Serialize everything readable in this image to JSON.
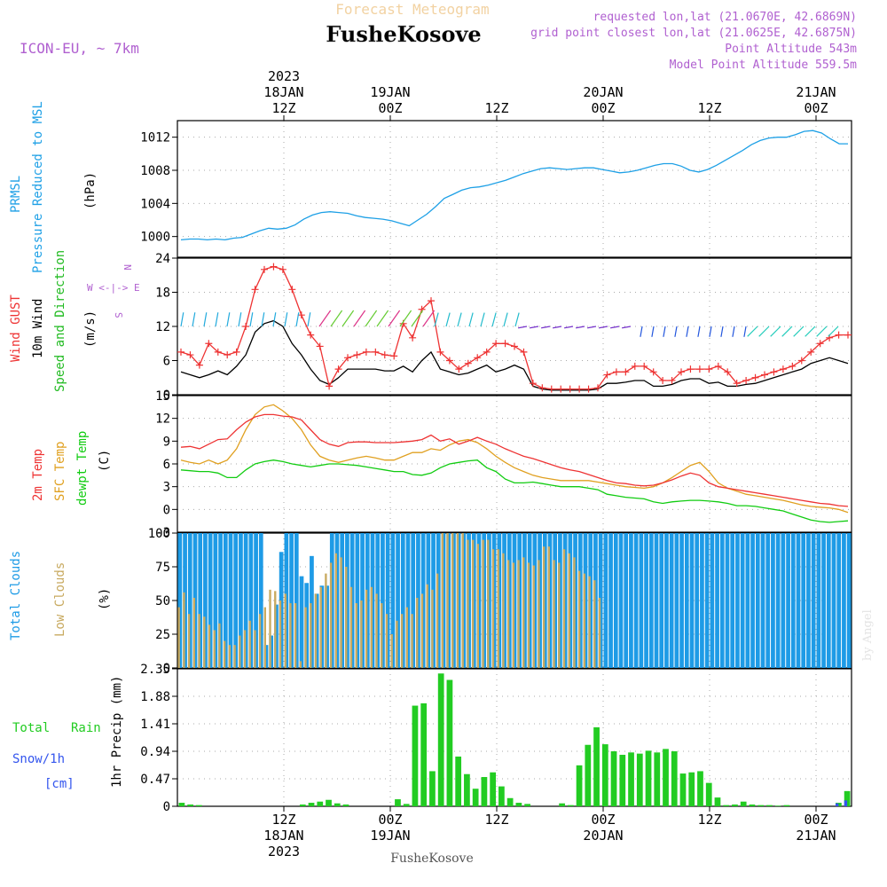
{
  "header": {
    "title": "Forecast Meteogram",
    "location": "FusheKosove",
    "model": "ICON-EU, ~ 7km",
    "requested": "requested lon,lat (21.0670E, 42.6869N)",
    "grid_point": "grid point closest lon,lat (21.0625E, 42.6875N)",
    "point_altitude": "Point Altitude 543m",
    "model_altitude": "Model Point Altitude 559.5m",
    "footer_location": "FusheKosove",
    "watermark": "by Angel"
  },
  "time_axis": {
    "top": [
      {
        "hour": "12Z",
        "day": "18JAN",
        "year": "2023"
      },
      {
        "hour": "00Z",
        "day": "19JAN",
        "year": ""
      },
      {
        "hour": "12Z",
        "day": "",
        "year": ""
      },
      {
        "hour": "00Z",
        "day": "20JAN",
        "year": ""
      },
      {
        "hour": "12Z",
        "day": "",
        "year": ""
      },
      {
        "hour": "00Z",
        "day": "21JAN",
        "year": ""
      }
    ],
    "bottom": [
      {
        "hour": "12Z",
        "day": "18JAN",
        "year": "2023"
      },
      {
        "hour": "00Z",
        "day": "19JAN",
        "year": ""
      },
      {
        "hour": "12Z",
        "day": "",
        "year": ""
      },
      {
        "hour": "00Z",
        "day": "20JAN",
        "year": ""
      },
      {
        "hour": "12Z",
        "day": "",
        "year": ""
      },
      {
        "hour": "00Z",
        "day": "21JAN",
        "year": ""
      }
    ]
  },
  "panels": {
    "pressure": {
      "label1": "PRMSL",
      "label2": "Pressure Reduced to MSL",
      "unit": "(hPa)"
    },
    "wind": {
      "label_gust": "Wind GUST",
      "label_wind": "10m Wind",
      "label_dir": "Speed and Direction",
      "unit": "(m/s)",
      "compass_ns": "N",
      "compass_we": "W <-|-> E",
      "compass_s": "S"
    },
    "temp": {
      "label_2m": "2m Temp",
      "label_sfc": "SFC Temp",
      "label_dew": "dewpt Temp",
      "unit": "(C)"
    },
    "clouds": {
      "label_total": "Total Clouds",
      "label_low": "Low Clouds",
      "unit": "(%)"
    },
    "precip": {
      "label_total": "Total",
      "label_rain": "Rain",
      "label_snow": "Snow/1h",
      "label_cm": "[cm]",
      "unit": "1hr Precip (mm)"
    }
  },
  "colors": {
    "pressure": "#1ea0e6",
    "gust": "#ee3333",
    "wind": "#000000",
    "sfc": "#e0a020",
    "dew": "#11cc11",
    "total_cloud": "#1e9be6",
    "low_cloud": "#c8aa60",
    "rain": "#22cc22",
    "snow": "#3355ee",
    "title": "#f2d2a2",
    "purple": "#b060d0"
  },
  "chart_data": [
    {
      "type": "line",
      "id": "pressure",
      "ylabel": "(hPa)",
      "ylim": [
        997.5,
        1014
      ],
      "yticks": [
        1000,
        1004,
        1008,
        1012
      ],
      "grid": true,
      "x_hours_start": 0,
      "x_hours_end": 76,
      "series": [
        {
          "name": "PRMSL",
          "values": [
            999.6,
            999.7,
            999.7,
            999.6,
            999.7,
            999.6,
            999.8,
            999.9,
            1000.3,
            1000.7,
            1001.0,
            1000.9,
            1001.0,
            1001.4,
            1002.1,
            1002.6,
            1002.9,
            1003.0,
            1002.9,
            1002.8,
            1002.5,
            1002.3,
            1002.2,
            1002.1,
            1001.9,
            1001.6,
            1001.3,
            1002.0,
            1002.7,
            1003.6,
            1004.6,
            1005.1,
            1005.6,
            1005.9,
            1006.0,
            1006.2,
            1006.5,
            1006.8,
            1007.2,
            1007.6,
            1007.9,
            1008.2,
            1008.3,
            1008.2,
            1008.1,
            1008.2,
            1008.3,
            1008.3,
            1008.1,
            1007.9,
            1007.7,
            1007.8,
            1008.0,
            1008.3,
            1008.6,
            1008.8,
            1008.8,
            1008.5,
            1008.0,
            1007.8,
            1008.1,
            1008.6,
            1009.2,
            1009.8,
            1010.4,
            1011.1,
            1011.6,
            1011.9,
            1012.0,
            1012.0,
            1012.3,
            1012.7,
            1012.8,
            1012.5,
            1011.8,
            1011.2,
            1011.2
          ]
        }
      ]
    },
    {
      "type": "line",
      "id": "wind",
      "ylabel": "(m/s)",
      "ylim": [
        0,
        24
      ],
      "yticks": [
        0,
        6,
        12,
        18,
        24
      ],
      "grid": true,
      "series": [
        {
          "name": "Wind GUST",
          "values": [
            7.5,
            7.0,
            5.2,
            9.0,
            7.5,
            7.0,
            7.5,
            12.0,
            18.5,
            22.0,
            22.5,
            22.0,
            18.5,
            14.0,
            10.5,
            8.5,
            1.5,
            4.5,
            6.5,
            7.0,
            7.5,
            7.5,
            7.0,
            6.8,
            12.5,
            10.0,
            15.0,
            16.5,
            7.5,
            6.0,
            4.5,
            5.5,
            6.5,
            7.5,
            9.0,
            9.0,
            8.5,
            7.5,
            2.0,
            1.2,
            1.0,
            1.0,
            1.0,
            1.0,
            1.0,
            1.2,
            3.5,
            4.0,
            4.0,
            5.0,
            5.0,
            4.0,
            2.5,
            2.5,
            4.0,
            4.5,
            4.5,
            4.5,
            5.0,
            4.0,
            2.0,
            2.5,
            3.0,
            3.5,
            4.0,
            4.5,
            5.0,
            6.0,
            7.5,
            9.0,
            10.0,
            10.5,
            10.5
          ]
        },
        {
          "name": "10m Wind",
          "values": [
            4.0,
            3.5,
            3.0,
            3.5,
            4.2,
            3.5,
            5.0,
            7.0,
            11.0,
            12.5,
            13.0,
            12.0,
            9.0,
            7.0,
            4.5,
            2.5,
            1.8,
            3.0,
            4.5,
            4.5,
            4.5,
            4.5,
            4.2,
            4.2,
            5.0,
            4.0,
            6.0,
            7.5,
            4.5,
            4.0,
            3.5,
            3.8,
            4.5,
            5.2,
            4.0,
            4.5,
            5.2,
            4.5,
            1.5,
            1.0,
            0.8,
            0.8,
            0.8,
            0.8,
            0.8,
            1.0,
            2.0,
            2.0,
            2.2,
            2.5,
            2.5,
            1.5,
            1.5,
            1.8,
            2.5,
            2.8,
            2.8,
            2.0,
            2.2,
            1.5,
            1.5,
            1.8,
            2.0,
            2.5,
            3.0,
            3.5,
            4.0,
            4.5,
            5.5,
            6.0,
            6.5,
            6.0,
            5.5
          ]
        }
      ]
    },
    {
      "type": "line",
      "id": "temp",
      "ylabel": "(C)",
      "ylim": [
        -3,
        15
      ],
      "yticks": [
        0,
        3,
        6,
        9,
        12,
        15
      ],
      "grid": true,
      "series": [
        {
          "name": "2m Temp",
          "values": [
            8.2,
            8.3,
            8.0,
            8.6,
            9.2,
            9.3,
            10.5,
            11.5,
            12.2,
            12.5,
            12.5,
            12.3,
            12.2,
            11.8,
            10.5,
            9.2,
            8.6,
            8.3,
            8.8,
            8.9,
            8.9,
            8.8,
            8.8,
            8.8,
            8.9,
            9.0,
            9.2,
            9.8,
            9.0,
            9.3,
            8.6,
            9.0,
            9.5,
            9.0,
            8.6,
            8.0,
            7.5,
            7.0,
            6.7,
            6.3,
            5.9,
            5.5,
            5.2,
            5.0,
            4.6,
            4.2,
            3.8,
            3.5,
            3.4,
            3.2,
            3.1,
            3.2,
            3.5,
            3.9,
            4.4,
            4.8,
            4.5,
            3.5,
            3.0,
            2.8,
            2.6,
            2.4,
            2.2,
            2.0,
            1.8,
            1.6,
            1.4,
            1.2,
            1.0,
            0.8,
            0.7,
            0.5,
            0.4
          ]
        },
        {
          "name": "SFC Temp",
          "values": [
            6.5,
            6.2,
            6.0,
            6.5,
            6.0,
            6.5,
            8.0,
            10.5,
            12.5,
            13.5,
            13.8,
            13.0,
            12.0,
            10.5,
            8.5,
            7.0,
            6.5,
            6.2,
            6.5,
            6.8,
            7.0,
            6.8,
            6.5,
            6.5,
            7.0,
            7.5,
            7.5,
            8.0,
            7.8,
            8.5,
            9.0,
            9.2,
            8.8,
            8.0,
            7.0,
            6.2,
            5.5,
            5.0,
            4.5,
            4.2,
            4.0,
            3.8,
            3.8,
            3.8,
            3.8,
            3.6,
            3.4,
            3.2,
            3.0,
            2.9,
            2.8,
            3.0,
            3.5,
            4.2,
            5.0,
            5.8,
            6.2,
            5.0,
            3.5,
            2.8,
            2.4,
            2.0,
            1.8,
            1.6,
            1.4,
            1.2,
            0.9,
            0.6,
            0.4,
            0.3,
            0.2,
            0.0,
            -0.4
          ]
        },
        {
          "name": "dewpt Temp",
          "values": [
            5.2,
            5.1,
            5.0,
            5.0,
            4.8,
            4.2,
            4.2,
            5.2,
            6.0,
            6.3,
            6.5,
            6.3,
            6.0,
            5.8,
            5.6,
            5.8,
            6.0,
            6.0,
            5.9,
            5.8,
            5.6,
            5.4,
            5.2,
            5.0,
            5.0,
            4.6,
            4.5,
            4.8,
            5.5,
            6.0,
            6.2,
            6.4,
            6.5,
            5.5,
            5.0,
            4.0,
            3.5,
            3.5,
            3.6,
            3.4,
            3.2,
            3.0,
            3.0,
            3.0,
            2.8,
            2.6,
            2.0,
            1.8,
            1.6,
            1.5,
            1.4,
            1.0,
            0.8,
            1.0,
            1.1,
            1.2,
            1.2,
            1.1,
            1.0,
            0.8,
            0.5,
            0.5,
            0.4,
            0.2,
            0.0,
            -0.2,
            -0.6,
            -1.0,
            -1.4,
            -1.6,
            -1.7,
            -1.6,
            -1.5
          ]
        }
      ]
    },
    {
      "type": "bar",
      "id": "clouds",
      "ylabel": "(%)",
      "ylim": [
        0,
        100
      ],
      "yticks": [
        0,
        25,
        50,
        75,
        100
      ],
      "grid": true,
      "series": [
        {
          "name": "Total Clouds",
          "values": [
            100,
            100,
            100,
            100,
            100,
            100,
            100,
            100,
            100,
            100,
            100,
            100,
            100,
            100,
            100,
            100,
            100,
            17,
            24,
            47,
            86,
            100,
            100,
            100,
            68,
            63,
            83,
            55,
            61,
            61,
            100,
            100,
            100,
            100,
            100,
            100,
            100,
            100,
            100,
            100,
            100,
            100,
            100,
            100,
            100,
            100,
            100,
            100,
            100,
            100,
            100,
            100,
            100,
            100,
            100,
            100,
            100,
            100,
            100,
            100,
            100,
            100,
            100,
            100,
            100,
            100,
            100,
            100,
            100,
            100,
            100,
            100,
            100,
            100,
            100,
            100,
            100,
            100,
            100,
            100,
            100,
            100,
            100,
            100,
            100,
            100,
            100,
            100,
            100,
            100,
            100,
            100,
            100,
            100,
            100,
            100,
            100,
            100,
            100,
            100,
            100,
            100,
            100,
            100,
            100,
            100,
            100,
            100,
            100,
            100,
            100,
            100,
            100,
            100,
            100,
            100,
            100,
            100,
            100,
            100,
            100,
            100,
            100,
            100,
            100,
            100,
            100,
            100,
            100,
            100,
            100,
            100,
            100
          ]
        },
        {
          "name": "Low Clouds",
          "values": [
            45,
            56,
            40,
            52,
            40,
            38,
            32,
            28,
            33,
            20,
            17,
            17,
            24,
            28,
            35,
            28,
            40,
            45,
            58,
            57,
            50,
            55,
            48,
            48,
            5,
            45,
            48,
            55,
            60,
            70,
            78,
            85,
            82,
            75,
            60,
            48,
            50,
            58,
            60,
            55,
            48,
            40,
            25,
            35,
            40,
            45,
            40,
            52,
            55,
            62,
            58,
            70,
            100,
            100,
            100,
            100,
            100,
            95,
            95,
            92,
            95,
            95,
            88,
            88,
            85,
            80,
            78,
            80,
            82,
            78,
            76,
            80,
            90,
            90,
            80,
            78,
            88,
            85,
            82,
            72,
            70,
            68,
            65,
            52
          ]
        }
      ]
    },
    {
      "type": "bar",
      "id": "precip",
      "ylabel": "1hr Precip (mm)",
      "ylim": [
        0,
        2.35
      ],
      "yticks": [
        0,
        0.47,
        0.94,
        1.41,
        1.88,
        2.35
      ],
      "ytick_labels": [
        "0",
        "0.47",
        "0.94",
        "1.41",
        "1.88",
        "2.35"
      ],
      "grid": true,
      "series": [
        {
          "name": "Total Rain",
          "values": [
            0.06,
            0.03,
            0.02,
            0,
            0,
            0,
            0,
            0,
            0,
            0,
            0,
            0,
            0,
            0,
            0.03,
            0.06,
            0.08,
            0.11,
            0.05,
            0.03,
            0,
            0,
            0,
            0,
            0,
            0.12,
            0.04,
            1.72,
            1.76,
            0.6,
            2.27,
            2.16,
            0.85,
            0.55,
            0.3,
            0.5,
            0.58,
            0.34,
            0.14,
            0.06,
            0.04,
            0,
            0,
            0,
            0.05,
            0.02,
            0.7,
            1.05,
            1.35,
            1.06,
            0.94,
            0.88,
            0.92,
            0.9,
            0.95,
            0.92,
            0.98,
            0.94,
            0.56,
            0.58,
            0.6,
            0.4,
            0.15,
            0.02,
            0.03,
            0.08,
            0.03,
            0.02,
            0.02,
            0.01,
            0.02,
            0,
            0,
            0,
            0,
            0,
            0.06,
            0.26
          ]
        },
        {
          "name": "Snow/1h",
          "values": [
            0,
            0,
            0,
            0,
            0,
            0,
            0,
            0,
            0,
            0,
            0,
            0,
            0,
            0,
            0,
            0,
            0,
            0,
            0,
            0,
            0,
            0,
            0,
            0,
            0,
            0,
            0,
            0,
            0,
            0,
            0,
            0,
            0,
            0,
            0,
            0,
            0,
            0,
            0,
            0,
            0,
            0,
            0,
            0,
            0,
            0,
            0,
            0,
            0,
            0,
            0,
            0,
            0,
            0,
            0,
            0,
            0,
            0,
            0,
            0,
            0,
            0,
            0,
            0,
            0,
            0,
            0,
            0,
            0,
            0,
            0,
            0,
            0,
            0,
            0,
            0,
            0.05,
            0.1
          ]
        }
      ]
    }
  ]
}
